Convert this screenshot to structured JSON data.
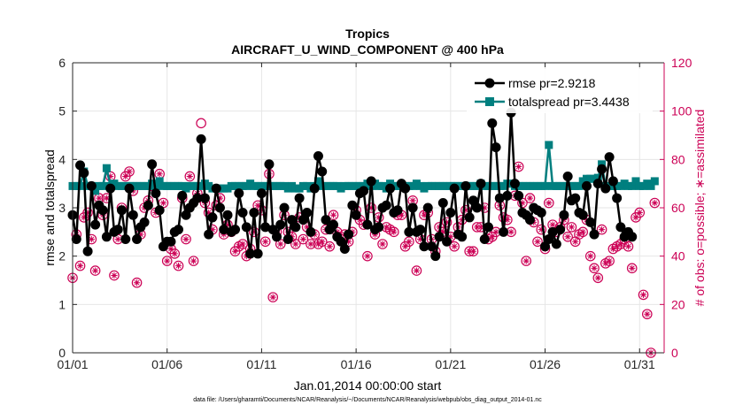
{
  "chart_data": {
    "type": "line",
    "title": "Tropics",
    "subtitle": "AIRCRAFT_U_WIND_COMPONENT @ 400 hPa",
    "xlabel": "Jan.01,2014 00:00:00 start",
    "ylabel_left": "rmse and totalspread",
    "ylabel_right": "# of obs: o=possible; ∗=assimilated",
    "xlim": [
      0,
      31.3
    ],
    "ylim_left": [
      0,
      6
    ],
    "ylim_right": [
      0,
      120
    ],
    "x_ticks": [
      {
        "value": 0,
        "label": "01/01"
      },
      {
        "value": 5,
        "label": "01/06"
      },
      {
        "value": 10,
        "label": "01/11"
      },
      {
        "value": 15,
        "label": "01/16"
      },
      {
        "value": 20,
        "label": "01/21"
      },
      {
        "value": 25,
        "label": "01/26"
      },
      {
        "value": 30,
        "label": "01/31"
      }
    ],
    "y_ticks_left": [
      "0",
      "1",
      "2",
      "3",
      "4",
      "5",
      "6"
    ],
    "y_ticks_right": [
      "0",
      "20",
      "40",
      "60",
      "80",
      "100",
      "120"
    ],
    "grid": true,
    "legend_position": "top-right",
    "colors": {
      "rmse": "#000000",
      "totalspread": "#007f7f",
      "obs": "#cc0055",
      "grid": "#e6e6e6"
    },
    "series": [
      {
        "name": "rmse",
        "legend_label": "rmse pr=2.9218",
        "axis": "left",
        "marker": "circle",
        "values": [
          2.85,
          2.35,
          3.88,
          3.72,
          2.1,
          3.45,
          2.65,
          3.05,
          2.95,
          2.4,
          3.4,
          2.5,
          2.55,
          2.95,
          2.35,
          3.4,
          2.85,
          2.35,
          2.6,
          2.7,
          3.05,
          3.9,
          3.3,
          2.95,
          2.2,
          2.3,
          2.3,
          2.5,
          2.55,
          3.25,
          2.85,
          3.0,
          3.1,
          3.2,
          4.42,
          3.2,
          2.45,
          2.8,
          3.4,
          3.0,
          2.55,
          2.85,
          2.5,
          2.55,
          3.3,
          2.9,
          2.6,
          2.05,
          2.9,
          2.05,
          3.3,
          2.6,
          3.9,
          2.55,
          2.4,
          2.65,
          3.0,
          2.35,
          2.75,
          2.6,
          3.2,
          2.75,
          2.9,
          2.5,
          3.4,
          4.07,
          3.75,
          2.75,
          2.55,
          2.65,
          2.4,
          2.3,
          2.15,
          2.45,
          3.05,
          2.85,
          3.3,
          3.35,
          2.65,
          3.55,
          2.55,
          2.6,
          3.0,
          3.05,
          3.4,
          2.9,
          2.95,
          3.5,
          3.4,
          2.5,
          3.0,
          2.5,
          2.55,
          2.2,
          3.0,
          2.2,
          2.0,
          2.4,
          3.1,
          2.3,
          2.9,
          3.4,
          2.45,
          2.4,
          3.45,
          2.8,
          3.15,
          3.0,
          3.5,
          2.35,
          2.6,
          4.75,
          4.25,
          3.2,
          2.5,
          3.25,
          4.97,
          3.5,
          3.25,
          2.9,
          2.85,
          2.75,
          3.0,
          2.95,
          2.9,
          2.2,
          2.35,
          2.5,
          2.25,
          2.55,
          2.85,
          3.65,
          3.15,
          3.2,
          2.9,
          2.85,
          3.45,
          2.7,
          2.45,
          3.5,
          3.8,
          3.4,
          4.05,
          3.55,
          3.2,
          2.6,
          2.4,
          2.5,
          2.4
        ]
      },
      {
        "name": "totalspread",
        "legend_label": "totalspread pr=3.4438",
        "axis": "left",
        "marker": "square",
        "values": [
          3.45,
          3.45,
          3.45,
          3.75,
          3.45,
          3.45,
          3.35,
          3.45,
          3.45,
          3.82,
          3.45,
          3.5,
          3.45,
          3.45,
          3.45,
          3.45,
          3.45,
          3.45,
          3.45,
          3.45,
          3.45,
          3.5,
          3.45,
          3.55,
          3.45,
          3.45,
          3.45,
          3.45,
          3.45,
          3.45,
          3.4,
          3.45,
          3.45,
          3.45,
          3.45,
          3.5,
          3.45,
          3.4,
          3.4,
          3.4,
          3.4,
          3.4,
          3.45,
          3.45,
          3.45,
          3.45,
          3.45,
          3.5,
          3.45,
          3.45,
          3.45,
          3.45,
          3.45,
          3.45,
          3.45,
          3.45,
          3.45,
          3.4,
          3.45,
          3.4,
          3.4,
          3.45,
          3.45,
          3.4,
          3.45,
          3.55,
          3.45,
          3.45,
          3.45,
          3.45,
          3.45,
          3.4,
          3.45,
          3.45,
          3.45,
          3.45,
          3.45,
          3.45,
          3.5,
          3.45,
          3.5,
          3.45,
          3.45,
          3.4,
          3.5,
          3.45,
          3.45,
          3.45,
          3.45,
          3.45,
          3.45,
          3.5,
          3.45,
          3.4,
          3.45,
          3.45,
          3.45,
          3.45,
          3.45,
          3.45,
          3.45,
          3.45,
          3.45,
          3.45,
          3.45,
          3.45,
          3.45,
          3.45,
          3.5,
          3.45,
          3.45,
          3.45,
          3.45,
          3.45,
          3.45,
          3.5,
          3.5,
          3.45,
          3.45,
          3.45,
          3.45,
          3.45,
          3.45,
          3.45,
          3.45,
          3.45,
          4.3,
          3.45,
          3.45,
          3.45,
          3.45,
          3.45,
          3.45,
          3.45,
          3.45,
          3.55,
          3.6,
          3.6,
          3.6,
          3.62,
          3.9,
          3.45,
          3.45,
          3.45,
          3.45,
          3.45,
          3.5,
          3.45,
          3.45,
          3.55,
          3.45,
          3.45,
          3.5,
          3.45,
          3.55
        ]
      },
      {
        "name": "obs_possible",
        "legend_label": "o=possible",
        "axis": "right",
        "marker": "open-circle",
        "values": [
          31,
          49,
          36,
          56,
          58,
          47,
          34,
          64,
          57,
          64,
          73,
          32,
          47,
          60,
          73,
          75,
          67,
          29,
          49,
          60,
          63,
          69,
          58,
          74,
          62,
          38,
          43,
          41,
          36,
          64,
          47,
          73,
          38,
          66,
          95,
          62,
          58,
          51,
          61,
          64,
          49,
          53,
          50,
          42,
          44,
          45,
          40,
          43,
          50,
          61,
          59,
          46,
          74,
          23,
          50,
          45,
          57,
          50,
          48,
          45,
          56,
          47,
          52,
          45,
          49,
          45,
          46,
          51,
          44,
          57,
          50,
          47,
          49,
          46,
          50,
          59,
          55,
          53,
          40,
          60,
          49,
          56,
          45,
          52,
          51,
          50,
          57,
          57,
          44,
          46,
          63,
          34,
          47,
          57,
          58,
          47,
          42,
          52,
          50,
          54,
          48,
          44,
          52,
          55,
          59,
          42,
          42,
          52,
          52,
          60,
          47,
          48,
          50,
          61,
          56,
          55,
          50,
          65,
          77,
          62,
          38,
          64,
          54,
          46,
          51,
          43,
          62,
          53,
          50,
          52,
          55,
          48,
          52,
          46,
          49,
          50,
          55,
          40,
          35,
          31,
          51,
          37,
          38,
          43,
          44,
          45,
          47,
          44,
          35,
          56,
          58,
          24,
          16,
          0,
          62
        ]
      },
      {
        "name": "obs_assimilated",
        "legend_label": "∗=assimilated",
        "axis": "right",
        "marker": "asterisk",
        "values": [
          31,
          49,
          36,
          56,
          58,
          47,
          34,
          64,
          57,
          64,
          73,
          32,
          47,
          60,
          73,
          75,
          67,
          29,
          49,
          60,
          63,
          69,
          58,
          74,
          62,
          38,
          43,
          41,
          36,
          64,
          47,
          73,
          38,
          66,
          89,
          62,
          58,
          51,
          61,
          64,
          49,
          53,
          50,
          42,
          44,
          45,
          40,
          43,
          50,
          61,
          59,
          46,
          74,
          23,
          50,
          45,
          57,
          50,
          48,
          45,
          56,
          47,
          52,
          45,
          49,
          45,
          46,
          51,
          44,
          57,
          50,
          47,
          49,
          46,
          50,
          59,
          55,
          53,
          40,
          60,
          49,
          56,
          45,
          52,
          51,
          50,
          57,
          57,
          44,
          46,
          63,
          34,
          47,
          57,
          58,
          47,
          42,
          52,
          50,
          54,
          48,
          44,
          52,
          55,
          59,
          42,
          42,
          52,
          52,
          60,
          47,
          48,
          50,
          61,
          56,
          55,
          50,
          65,
          77,
          62,
          38,
          64,
          54,
          46,
          51,
          43,
          62,
          53,
          50,
          52,
          55,
          48,
          52,
          46,
          49,
          50,
          55,
          40,
          35,
          31,
          51,
          37,
          38,
          43,
          44,
          45,
          47,
          44,
          35,
          56,
          58,
          24,
          16,
          0,
          62
        ]
      }
    ]
  },
  "footnote": "data file: /Users/gharamti/Documents/NCAR/Reanalysis/~/Documents/NCAR/Reanalysis/webpub/obs_diag_output_2014-01.nc"
}
